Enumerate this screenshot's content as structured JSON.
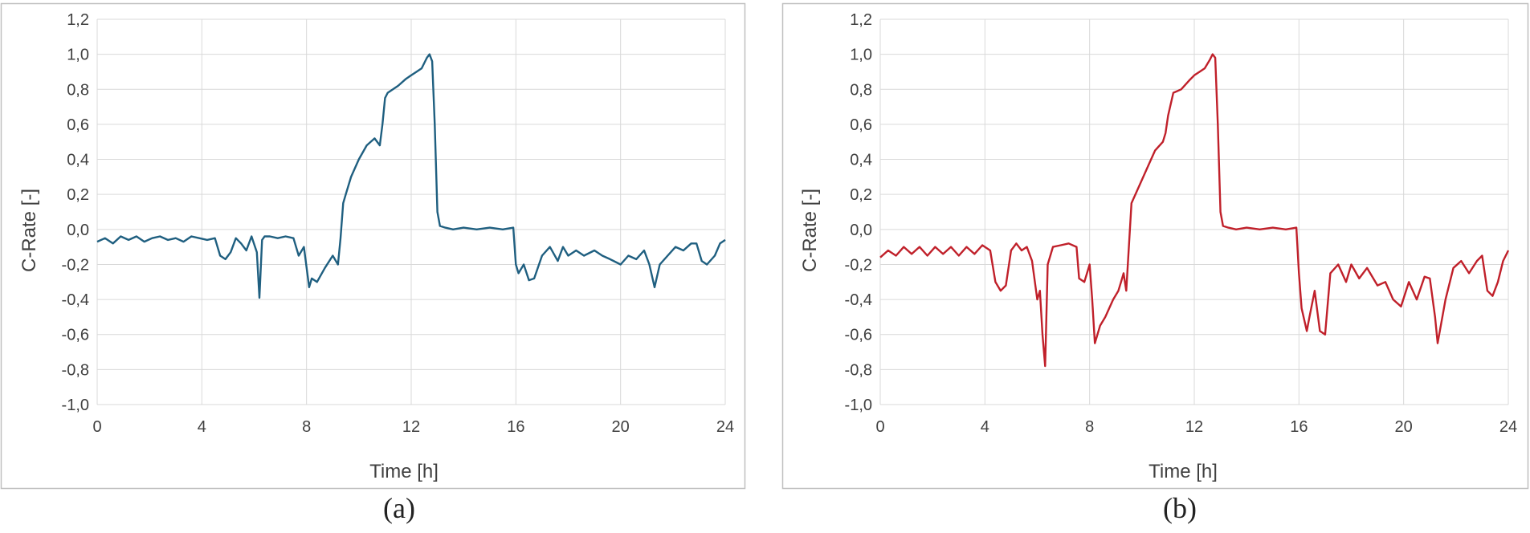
{
  "chart_data": [
    {
      "type": "line",
      "caption": "(a)",
      "xlabel": "Time [h]",
      "ylabel": "C-Rate [-]",
      "xlim": [
        0,
        24
      ],
      "ylim": [
        -1.0,
        1.2
      ],
      "xticks": [
        0,
        4,
        8,
        12,
        16,
        20,
        24
      ],
      "yticks": [
        "-1,0",
        "-0,8",
        "-0,6",
        "-0,4",
        "-0,2",
        "0,0",
        "0,2",
        "0,4",
        "0,6",
        "0,8",
        "1,0",
        "1,2"
      ],
      "grid": true,
      "color": "#1f5f80",
      "x": [
        0,
        0.3,
        0.6,
        0.9,
        1.2,
        1.5,
        1.8,
        2.1,
        2.4,
        2.7,
        3.0,
        3.3,
        3.6,
        3.9,
        4.2,
        4.5,
        4.7,
        4.9,
        5.1,
        5.3,
        5.5,
        5.7,
        5.9,
        6.1,
        6.2,
        6.3,
        6.4,
        6.6,
        6.9,
        7.2,
        7.5,
        7.7,
        7.9,
        8.1,
        8.2,
        8.4,
        8.7,
        9.0,
        9.2,
        9.3,
        9.4,
        9.5,
        9.7,
        10.0,
        10.3,
        10.6,
        10.8,
        10.9,
        11.0,
        11.1,
        11.3,
        11.5,
        11.8,
        12.0,
        12.2,
        12.4,
        12.6,
        12.7,
        12.8,
        12.9,
        13.0,
        13.1,
        13.3,
        13.6,
        14.0,
        14.5,
        15.0,
        15.5,
        15.9,
        16.0,
        16.1,
        16.3,
        16.5,
        16.7,
        17.0,
        17.3,
        17.6,
        17.8,
        18.0,
        18.3,
        18.6,
        19.0,
        19.3,
        19.6,
        20.0,
        20.3,
        20.6,
        20.9,
        21.1,
        21.3,
        21.5,
        21.8,
        22.1,
        22.4,
        22.7,
        22.9,
        23.1,
        23.3,
        23.6,
        23.8,
        24.0
      ],
      "y": [
        -0.07,
        -0.05,
        -0.08,
        -0.04,
        -0.06,
        -0.04,
        -0.07,
        -0.05,
        -0.04,
        -0.06,
        -0.05,
        -0.07,
        -0.04,
        -0.05,
        -0.06,
        -0.05,
        -0.15,
        -0.17,
        -0.13,
        -0.05,
        -0.08,
        -0.12,
        -0.04,
        -0.13,
        -0.39,
        -0.06,
        -0.04,
        -0.04,
        -0.05,
        -0.04,
        -0.05,
        -0.15,
        -0.1,
        -0.33,
        -0.28,
        -0.3,
        -0.22,
        -0.15,
        -0.2,
        -0.05,
        0.15,
        0.2,
        0.3,
        0.4,
        0.48,
        0.52,
        0.48,
        0.6,
        0.75,
        0.78,
        0.8,
        0.82,
        0.86,
        0.88,
        0.9,
        0.92,
        0.98,
        1.0,
        0.96,
        0.6,
        0.1,
        0.02,
        0.01,
        0.0,
        0.01,
        0.0,
        0.01,
        0.0,
        0.01,
        -0.2,
        -0.25,
        -0.2,
        -0.29,
        -0.28,
        -0.15,
        -0.1,
        -0.18,
        -0.1,
        -0.15,
        -0.12,
        -0.15,
        -0.12,
        -0.15,
        -0.17,
        -0.2,
        -0.15,
        -0.17,
        -0.12,
        -0.2,
        -0.33,
        -0.2,
        -0.15,
        -0.1,
        -0.12,
        -0.08,
        -0.08,
        -0.18,
        -0.2,
        -0.15,
        -0.08,
        -0.06
      ]
    },
    {
      "type": "line",
      "caption": "(b)",
      "xlabel": "Time [h]",
      "ylabel": "C-Rate [-]",
      "xlim": [
        0,
        24
      ],
      "ylim": [
        -1.0,
        1.2
      ],
      "xticks": [
        0,
        4,
        8,
        12,
        16,
        20,
        24
      ],
      "yticks": [
        "-1,0",
        "-0,8",
        "-0,6",
        "-0,4",
        "-0,2",
        "0,0",
        "0,2",
        "0,4",
        "0,6",
        "0,8",
        "1,0",
        "1,2"
      ],
      "grid": true,
      "color": "#c0202a",
      "x": [
        0,
        0.3,
        0.6,
        0.9,
        1.2,
        1.5,
        1.8,
        2.1,
        2.4,
        2.7,
        3.0,
        3.3,
        3.6,
        3.9,
        4.2,
        4.4,
        4.6,
        4.8,
        5.0,
        5.2,
        5.4,
        5.6,
        5.8,
        6.0,
        6.1,
        6.2,
        6.3,
        6.4,
        6.6,
        6.9,
        7.2,
        7.5,
        7.6,
        7.8,
        8.0,
        8.1,
        8.2,
        8.4,
        8.6,
        8.9,
        9.1,
        9.2,
        9.3,
        9.4,
        9.6,
        9.9,
        10.2,
        10.5,
        10.8,
        10.9,
        11.0,
        11.2,
        11.5,
        11.8,
        12.0,
        12.2,
        12.4,
        12.6,
        12.7,
        12.8,
        12.9,
        13.0,
        13.1,
        13.3,
        13.6,
        14.0,
        14.5,
        15.0,
        15.5,
        15.9,
        16.0,
        16.1,
        16.3,
        16.4,
        16.6,
        16.8,
        17.0,
        17.2,
        17.5,
        17.8,
        18.0,
        18.3,
        18.6,
        19.0,
        19.3,
        19.6,
        19.9,
        20.2,
        20.5,
        20.8,
        21.0,
        21.2,
        21.3,
        21.6,
        21.9,
        22.2,
        22.5,
        22.8,
        23.0,
        23.2,
        23.4,
        23.6,
        23.8,
        24.0
      ],
      "y": [
        -0.16,
        -0.12,
        -0.15,
        -0.1,
        -0.14,
        -0.1,
        -0.15,
        -0.1,
        -0.14,
        -0.1,
        -0.15,
        -0.1,
        -0.14,
        -0.09,
        -0.12,
        -0.3,
        -0.35,
        -0.32,
        -0.12,
        -0.08,
        -0.12,
        -0.1,
        -0.18,
        -0.4,
        -0.35,
        -0.6,
        -0.78,
        -0.2,
        -0.1,
        -0.09,
        -0.08,
        -0.1,
        -0.28,
        -0.3,
        -0.2,
        -0.4,
        -0.65,
        -0.55,
        -0.5,
        -0.4,
        -0.35,
        -0.3,
        -0.25,
        -0.35,
        0.15,
        0.25,
        0.35,
        0.45,
        0.5,
        0.55,
        0.65,
        0.78,
        0.8,
        0.85,
        0.88,
        0.9,
        0.92,
        0.97,
        1.0,
        0.98,
        0.6,
        0.1,
        0.02,
        0.01,
        0.0,
        0.01,
        0.0,
        0.01,
        0.0,
        0.01,
        -0.25,
        -0.45,
        -0.58,
        -0.5,
        -0.35,
        -0.58,
        -0.6,
        -0.25,
        -0.2,
        -0.3,
        -0.2,
        -0.28,
        -0.22,
        -0.32,
        -0.3,
        -0.4,
        -0.44,
        -0.3,
        -0.4,
        -0.27,
        -0.28,
        -0.5,
        -0.65,
        -0.4,
        -0.22,
        -0.18,
        -0.25,
        -0.18,
        -0.15,
        -0.35,
        -0.38,
        -0.3,
        -0.18,
        -0.12
      ]
    }
  ]
}
